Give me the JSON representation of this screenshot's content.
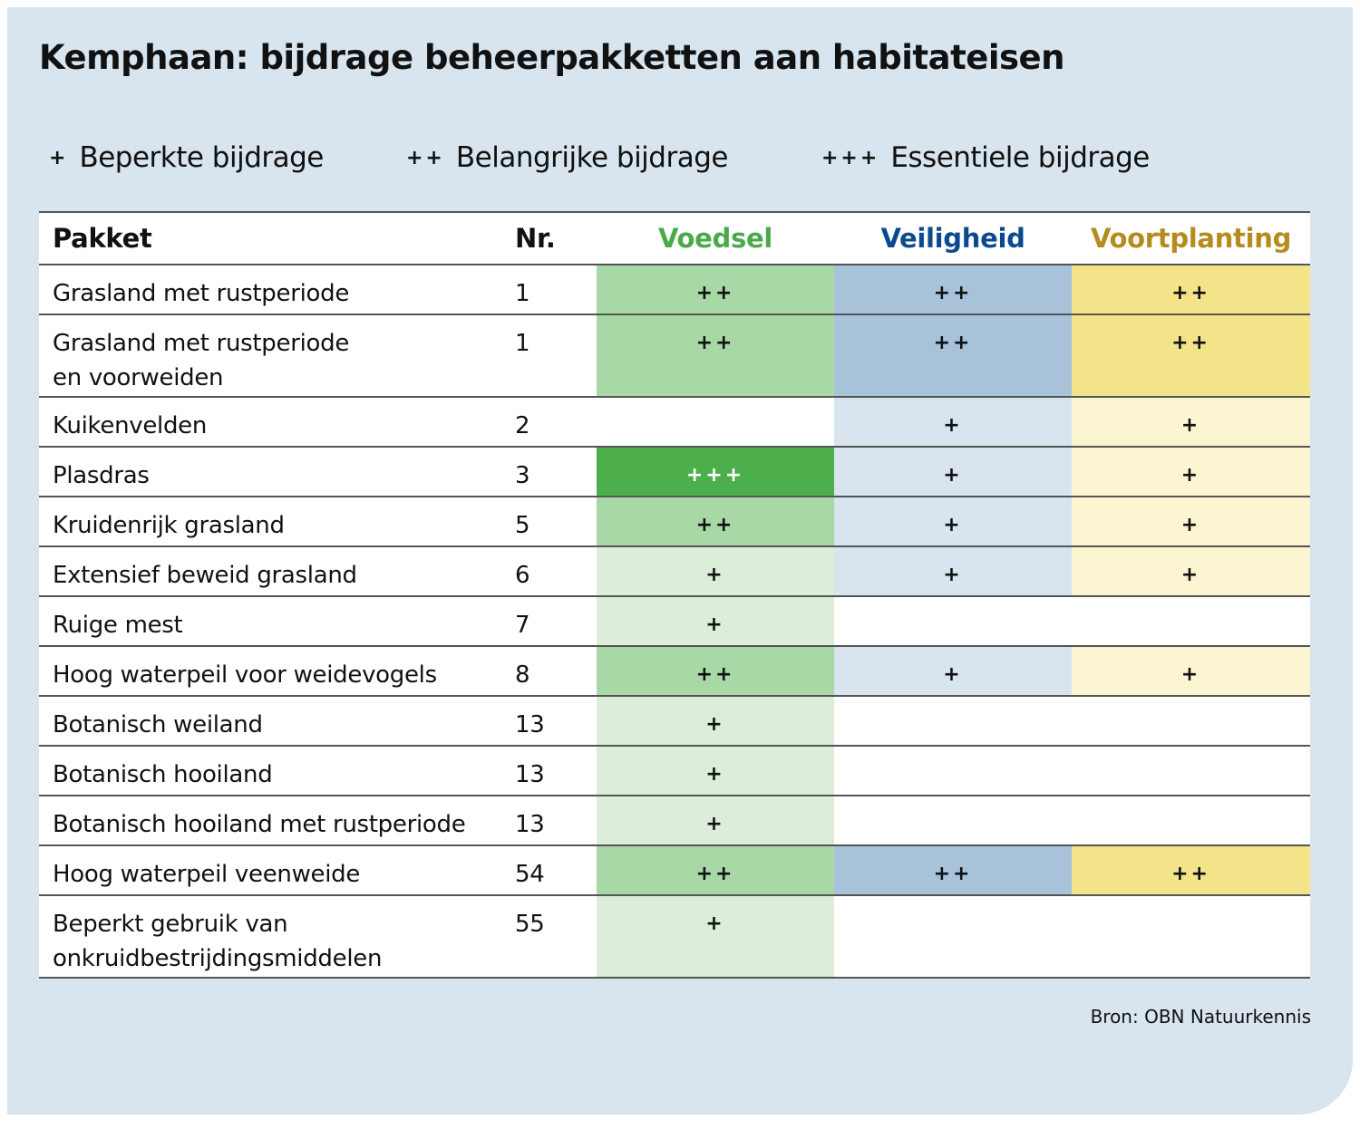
{
  "title": "Kemphaan: bijdrage beheerpakketten aan habitateisen",
  "legend": [
    {
      "symbol": "+",
      "label": "Beperkte bijdrage"
    },
    {
      "symbol": "++",
      "label": "Belangrijke bijdrage"
    },
    {
      "symbol": "+++",
      "label": "Essentiele bijdrage"
    }
  ],
  "table": {
    "headers": {
      "pakket": "Pakket",
      "nr": "Nr.",
      "voedsel": "Voedsel",
      "veiligheid": "Veiligheid",
      "voortplanting": "Voortplanting"
    },
    "header_colors": {
      "voedsel": "#4aa94a",
      "veiligheid": "#0b4a8f",
      "voortplanting": "#b58b1d"
    },
    "level_colors": {
      "voedsel": {
        "0": "#ffffff",
        "1": "#dcedd9",
        "2": "#a8d8a5",
        "3": "#4caf4c"
      },
      "veiligheid": {
        "0": "#ffffff",
        "1": "#d8e4ee",
        "2": "#a8c2da"
      },
      "voortplanting": {
        "0": "#ffffff",
        "1": "#fbf5d2",
        "2": "#f3e48a"
      }
    },
    "rows": [
      {
        "pakket": [
          "Grasland met rustperiode"
        ],
        "nr": "1",
        "voedsel": "++",
        "veiligheid": "++",
        "voortplanting": "++"
      },
      {
        "pakket": [
          "Grasland met rustperiode",
          "en voorweiden"
        ],
        "nr": "1",
        "voedsel": "++",
        "veiligheid": "++",
        "voortplanting": "++"
      },
      {
        "pakket": [
          "Kuikenvelden"
        ],
        "nr": "2",
        "voedsel": "",
        "veiligheid": "+",
        "voortplanting": "+"
      },
      {
        "pakket": [
          "Plasdras"
        ],
        "nr": "3",
        "voedsel": "+++",
        "veiligheid": "+",
        "voortplanting": "+"
      },
      {
        "pakket": [
          "Kruidenrijk grasland"
        ],
        "nr": "5",
        "voedsel": "++",
        "veiligheid": "+",
        "voortplanting": "+"
      },
      {
        "pakket": [
          "Extensief beweid grasland"
        ],
        "nr": "6",
        "voedsel": "+",
        "veiligheid": "+",
        "voortplanting": "+"
      },
      {
        "pakket": [
          "Ruige mest"
        ],
        "nr": "7",
        "voedsel": "+",
        "veiligheid": "",
        "voortplanting": ""
      },
      {
        "pakket": [
          "Hoog waterpeil voor weidevogels"
        ],
        "nr": "8",
        "voedsel": "++",
        "veiligheid": "+",
        "voortplanting": "+"
      },
      {
        "pakket": [
          "Botanisch weiland"
        ],
        "nr": "13",
        "voedsel": "+",
        "veiligheid": "",
        "voortplanting": ""
      },
      {
        "pakket": [
          "Botanisch hooiland"
        ],
        "nr": "13",
        "voedsel": "+",
        "veiligheid": "",
        "voortplanting": ""
      },
      {
        "pakket": [
          "Botanisch hooiland met rustperiode"
        ],
        "nr": "13",
        "voedsel": "+",
        "veiligheid": "",
        "voortplanting": ""
      },
      {
        "pakket": [
          "Hoog waterpeil veenweide"
        ],
        "nr": "54",
        "voedsel": "++",
        "veiligheid": "++",
        "voortplanting": "++"
      },
      {
        "pakket": [
          "Beperkt gebruik van",
          "onkruidbestrijdingsmiddelen"
        ],
        "nr": "55",
        "voedsel": "+",
        "veiligheid": "",
        "voortplanting": ""
      }
    ]
  },
  "source": "Bron: OBN Natuurkennis"
}
